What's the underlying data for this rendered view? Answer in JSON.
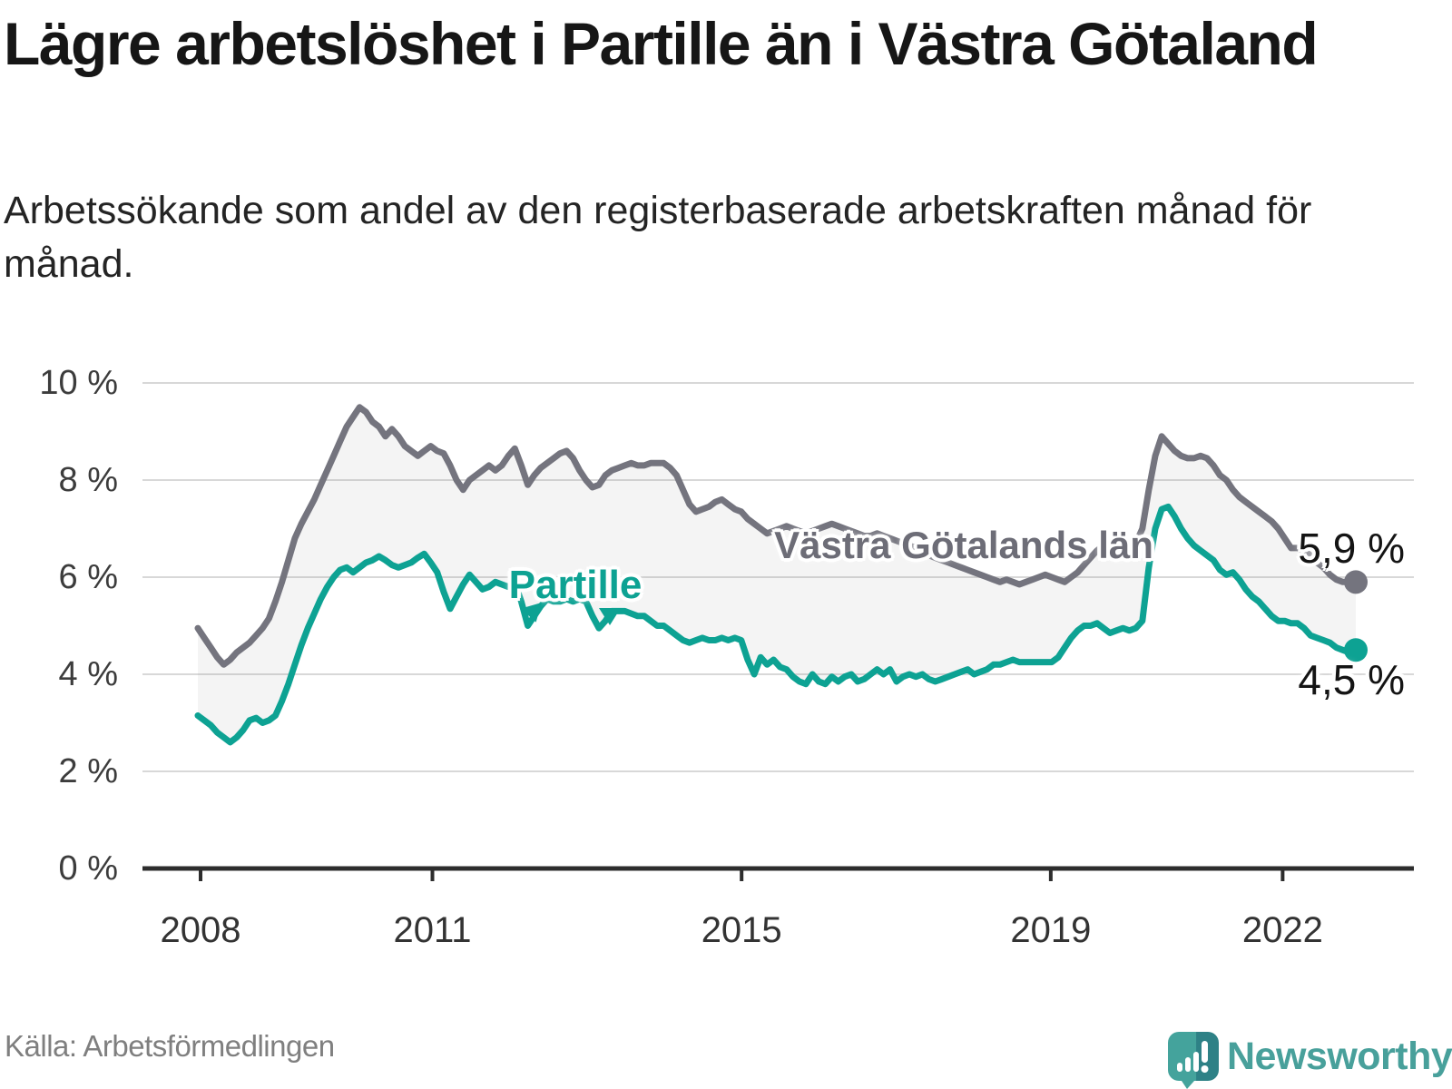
{
  "header": {
    "title": "Lägre arbetslöshet i Partille än i Västra Götaland",
    "subtitle": "Arbetssökande som andel av den registerbaserade arbetskraften månad för månad."
  },
  "footer": {
    "source": "Källa: Arbetsförmedlingen",
    "brand": "Newsworthy",
    "brand_icon": "newsworthy-speech-bubble-bar-chart-icon",
    "brand_color": "#48a09b"
  },
  "colors": {
    "grid": "#d8d8d8",
    "axis": "#2d2d2d",
    "fill_between": "rgba(110,110,120,0.08)",
    "halo": "#ffffff"
  },
  "chart_data": {
    "type": "line",
    "unit": "%",
    "x_start_year": 2008,
    "x_points_per_year": 12,
    "ylim": [
      0,
      10.5
    ],
    "grid": true,
    "legend": "inline-labels",
    "y_ticks": [
      {
        "value": 0,
        "label": "0 %"
      },
      {
        "value": 2,
        "label": "2 %"
      },
      {
        "value": 4,
        "label": "4 %"
      },
      {
        "value": 6,
        "label": "6 %"
      },
      {
        "value": 8,
        "label": "8 %"
      },
      {
        "value": 10,
        "label": "10 %"
      }
    ],
    "x_ticks": [
      {
        "year": 2008,
        "label": "2008"
      },
      {
        "year": 2011,
        "label": "2011"
      },
      {
        "year": 2015,
        "label": "2015"
      },
      {
        "year": 2019,
        "label": "2019"
      },
      {
        "year": 2022,
        "label": "2022"
      }
    ],
    "series": [
      {
        "name": "Västra Götalands län",
        "color": "#74747e",
        "end_value_label": "5,9 %",
        "end_value": 5.9,
        "values": [
          4.95,
          4.75,
          4.55,
          4.35,
          4.2,
          4.3,
          4.45,
          4.55,
          4.65,
          4.8,
          4.95,
          5.15,
          5.5,
          5.9,
          6.35,
          6.8,
          7.1,
          7.35,
          7.6,
          7.9,
          8.2,
          8.5,
          8.8,
          9.1,
          9.3,
          9.5,
          9.4,
          9.2,
          9.1,
          8.9,
          9.05,
          8.9,
          8.7,
          8.6,
          8.5,
          8.6,
          8.7,
          8.6,
          8.55,
          8.3,
          8.0,
          7.8,
          8.0,
          8.1,
          8.2,
          8.3,
          8.2,
          8.3,
          8.5,
          8.65,
          8.3,
          7.9,
          8.1,
          8.25,
          8.35,
          8.45,
          8.55,
          8.6,
          8.45,
          8.2,
          8.0,
          7.85,
          7.9,
          8.1,
          8.2,
          8.25,
          8.3,
          8.35,
          8.3,
          8.3,
          8.35,
          8.35,
          8.35,
          8.25,
          8.1,
          7.8,
          7.5,
          7.35,
          7.4,
          7.45,
          7.55,
          7.6,
          7.5,
          7.4,
          7.35,
          7.2,
          7.1,
          7.0,
          6.9,
          6.95,
          7.0,
          7.05,
          7.0,
          6.95,
          6.9,
          6.95,
          7.0,
          7.05,
          7.1,
          7.05,
          7.0,
          6.95,
          6.9,
          6.85,
          6.85,
          6.9,
          6.85,
          6.8,
          6.75,
          6.7,
          6.65,
          6.6,
          6.5,
          6.45,
          6.4,
          6.35,
          6.3,
          6.25,
          6.2,
          6.15,
          6.1,
          6.05,
          6.0,
          5.95,
          5.9,
          5.95,
          5.9,
          5.85,
          5.9,
          5.95,
          6.0,
          6.05,
          6.0,
          5.95,
          5.9,
          6.0,
          6.1,
          6.25,
          6.4,
          6.55,
          6.65,
          6.75,
          6.6,
          6.55,
          6.6,
          6.7,
          7.0,
          7.8,
          8.5,
          8.9,
          8.75,
          8.6,
          8.5,
          8.45,
          8.45,
          8.5,
          8.45,
          8.3,
          8.1,
          8.0,
          7.8,
          7.65,
          7.55,
          7.45,
          7.35,
          7.25,
          7.15,
          7.0,
          6.8,
          6.6,
          6.6,
          6.55,
          6.45,
          6.3,
          6.2,
          6.05,
          5.95,
          5.9,
          5.9,
          5.9
        ]
      },
      {
        "name": "Partille",
        "color": "#0da293",
        "end_value_label": "4,5 %",
        "end_value": 4.5,
        "values": [
          3.15,
          3.05,
          2.95,
          2.8,
          2.7,
          2.6,
          2.7,
          2.85,
          3.05,
          3.1,
          3.0,
          3.05,
          3.15,
          3.45,
          3.8,
          4.2,
          4.6,
          4.95,
          5.25,
          5.55,
          5.8,
          6.0,
          6.15,
          6.2,
          6.1,
          6.2,
          6.3,
          6.35,
          6.43,
          6.35,
          6.25,
          6.2,
          6.25,
          6.3,
          6.4,
          6.48,
          6.3,
          6.1,
          5.7,
          5.35,
          5.6,
          5.85,
          6.05,
          5.9,
          5.75,
          5.8,
          5.9,
          5.85,
          5.8,
          5.9,
          5.5,
          5.0,
          5.2,
          5.4,
          5.55,
          5.5,
          5.5,
          5.55,
          5.5,
          5.55,
          5.5,
          5.2,
          4.95,
          5.1,
          5.3,
          5.3,
          5.3,
          5.25,
          5.2,
          5.2,
          5.1,
          5.0,
          5.0,
          4.9,
          4.8,
          4.7,
          4.65,
          4.7,
          4.75,
          4.7,
          4.7,
          4.75,
          4.7,
          4.75,
          4.7,
          4.3,
          4.0,
          4.35,
          4.2,
          4.3,
          4.15,
          4.1,
          3.95,
          3.85,
          3.8,
          4.0,
          3.85,
          3.8,
          3.95,
          3.85,
          3.95,
          4.0,
          3.85,
          3.9,
          4.0,
          4.1,
          4.0,
          4.1,
          3.85,
          3.95,
          4.0,
          3.95,
          4.0,
          3.9,
          3.85,
          3.9,
          3.95,
          4.0,
          4.05,
          4.1,
          4.0,
          4.05,
          4.1,
          4.2,
          4.2,
          4.25,
          4.3,
          4.25,
          4.25,
          4.25,
          4.25,
          4.25,
          4.25,
          4.35,
          4.55,
          4.75,
          4.9,
          5.0,
          5.0,
          5.05,
          4.95,
          4.85,
          4.9,
          4.95,
          4.9,
          4.95,
          5.1,
          6.2,
          7.0,
          7.4,
          7.45,
          7.25,
          7.0,
          6.8,
          6.65,
          6.55,
          6.45,
          6.35,
          6.15,
          6.05,
          6.1,
          5.95,
          5.75,
          5.6,
          5.5,
          5.35,
          5.2,
          5.1,
          5.1,
          5.05,
          5.05,
          4.95,
          4.8,
          4.75,
          4.7,
          4.65,
          4.55,
          4.5,
          4.45,
          4.5
        ]
      }
    ]
  }
}
